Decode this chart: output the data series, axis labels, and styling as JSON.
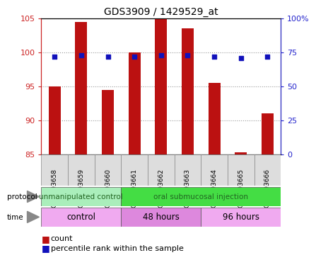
{
  "title": "GDS3909 / 1429529_at",
  "samples": [
    "GSM693658",
    "GSM693659",
    "GSM693660",
    "GSM693661",
    "GSM693662",
    "GSM693663",
    "GSM693664",
    "GSM693665",
    "GSM693666"
  ],
  "bar_tops": [
    95,
    104.5,
    94.5,
    100,
    105,
    103.5,
    95.5,
    85.3,
    91
  ],
  "bar_bottoms": [
    85,
    85,
    85,
    85,
    85,
    85,
    85,
    85,
    85
  ],
  "percentile_ranks_pct": [
    72,
    73,
    72,
    72,
    73,
    73,
    72,
    71,
    72
  ],
  "ylim_left": [
    85,
    105
  ],
  "ylim_right": [
    0,
    100
  ],
  "yticks_left": [
    85,
    90,
    95,
    100,
    105
  ],
  "yticks_right": [
    0,
    25,
    50,
    75,
    100
  ],
  "ytick_labels_right": [
    "0",
    "25",
    "50",
    "75",
    "100%"
  ],
  "bar_color": "#bb1111",
  "point_color": "#1111bb",
  "bar_width": 0.45,
  "protocol_groups": [
    {
      "label": "unmanipulated control",
      "start": 0,
      "end": 3,
      "color": "#aaeebb"
    },
    {
      "label": "oral submucosal injection",
      "start": 3,
      "end": 9,
      "color": "#44dd44"
    }
  ],
  "time_groups": [
    {
      "label": "control",
      "start": 0,
      "end": 3,
      "color": "#f0aaf0"
    },
    {
      "label": "48 hours",
      "start": 3,
      "end": 6,
      "color": "#dd88dd"
    },
    {
      "label": "96 hours",
      "start": 6,
      "end": 9,
      "color": "#f0aaf0"
    }
  ],
  "legend_items": [
    {
      "label": "count",
      "color": "#bb1111"
    },
    {
      "label": "percentile rank within the sample",
      "color": "#1111bb"
    }
  ],
  "bg_color": "#ffffff",
  "plot_bg_color": "#ffffff",
  "grid_color": "#888888",
  "label_color_left": "#cc2222",
  "label_color_right": "#2222cc",
  "xticklabel_bg": "#dddddd",
  "xticklabel_fontsize": 6.5,
  "protocol_fontsize": 7.5,
  "time_fontsize": 8.5,
  "legend_fontsize": 8
}
